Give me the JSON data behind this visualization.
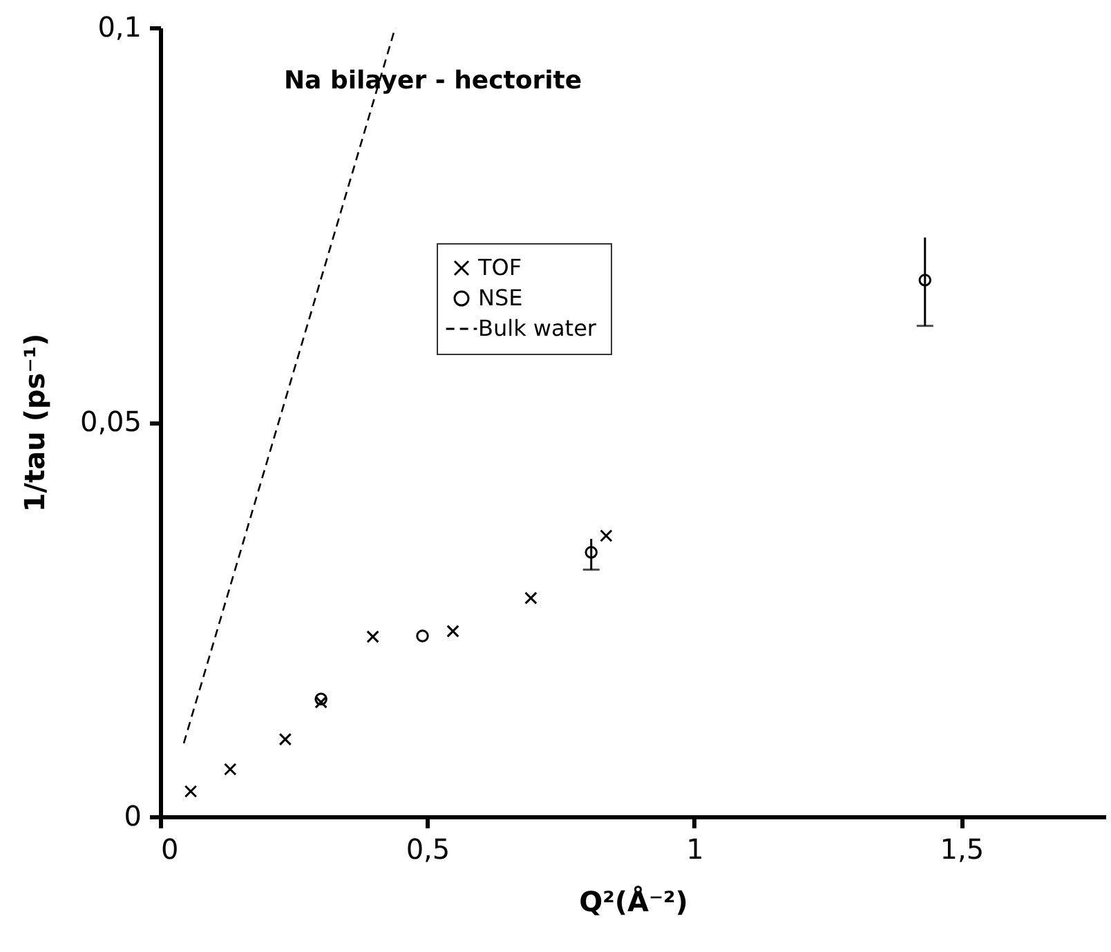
{
  "chart_data": {
    "type": "scatter",
    "title": "Na bilayer - hectorite",
    "xlabel": "Q²(Å⁻²)",
    "ylabel": "1/tau (ps⁻¹)",
    "xlim": [
      0,
      1.77
    ],
    "ylim": [
      0,
      0.1
    ],
    "xticks": [
      0,
      {
        "value": 0.5,
        "label": "0,5"
      },
      1,
      {
        "value": 1.5,
        "label": "1,5"
      }
    ],
    "yticks": [
      0,
      {
        "value": 0.05,
        "label": "0,05"
      },
      {
        "value": 0.1,
        "label": "0,1"
      }
    ],
    "legend": "top",
    "grid": false,
    "series": [
      {
        "name": "TOF",
        "marker": "cross",
        "color": "#000000",
        "x": [
          0.057,
          0.131,
          0.234,
          0.301,
          0.398,
          0.548,
          0.694,
          0.835
        ],
        "values": [
          0.0032,
          0.006,
          0.0098,
          0.0145,
          0.0228,
          0.0235,
          0.0277,
          0.0356
        ]
      },
      {
        "name": "NSE",
        "marker": "circle",
        "color": "#000000",
        "x": [
          0.301,
          0.491,
          0.807,
          1.432
        ],
        "values": [
          0.0149,
          0.0229,
          0.0335,
          0.068
        ],
        "errors": [
          null,
          null,
          [
            0.0313,
            0.0352
          ],
          [
            0.0622,
            0.0734
          ]
        ]
      },
      {
        "name": "Bulk water",
        "type": "line",
        "line_style": "dashed",
        "marker": "none",
        "color": "#000000",
        "x": [
          0.044,
          0.44
        ],
        "values": [
          0.0093,
          0.1
        ]
      }
    ]
  }
}
